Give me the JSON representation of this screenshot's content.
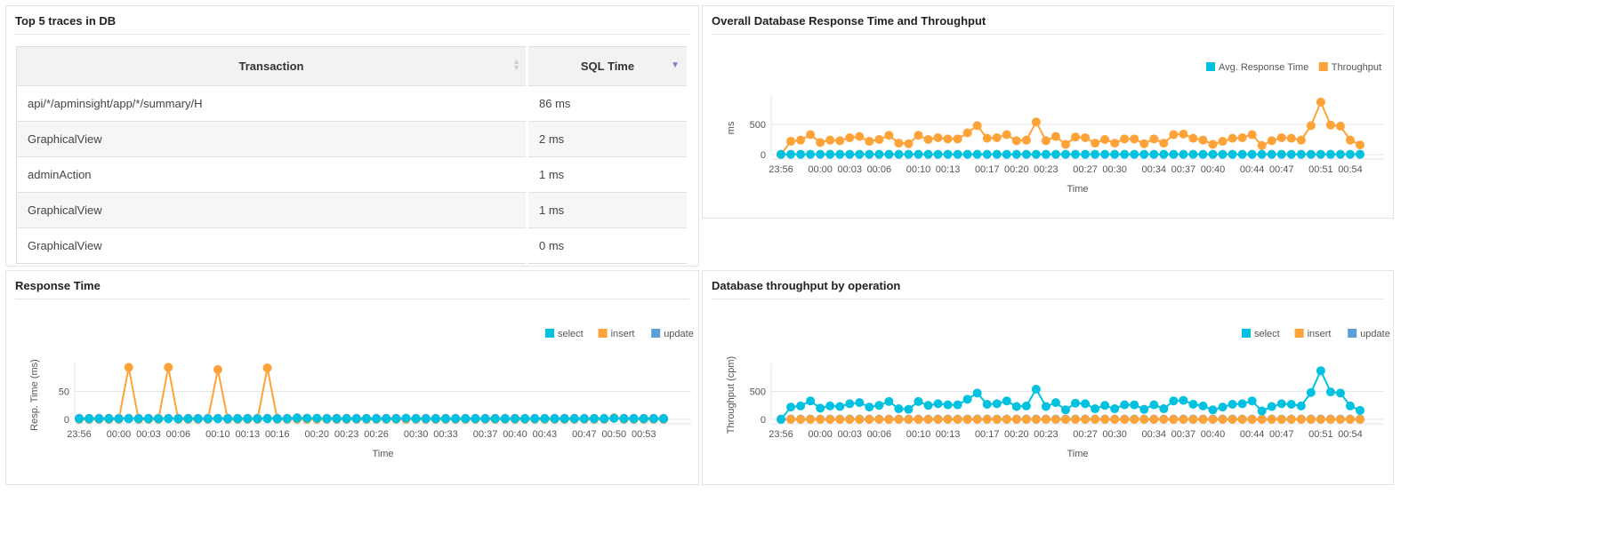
{
  "traces": {
    "title": "Top 5 traces in DB",
    "columns": [
      "Transaction",
      "SQL Time"
    ],
    "rows": [
      [
        "api/*/apminsight/app/*/summary/H",
        "86 ms"
      ],
      [
        "GraphicalView",
        "2 ms"
      ],
      [
        "adminAction",
        "1 ms"
      ],
      [
        "GraphicalView",
        "1 ms"
      ],
      [
        "GraphicalView",
        "0 ms"
      ]
    ]
  },
  "colors": {
    "select": "#00c2e0",
    "insert": "#ffa237",
    "update": "#5b9fd8"
  },
  "chart_data": [
    {
      "id": "overall",
      "title": "Overall Database Response Time and Throughput",
      "type": "line",
      "xlabel": "Time",
      "ylabel": "ms",
      "ylim": [
        0,
        1000
      ],
      "yticks": [
        0,
        500
      ],
      "grid": true,
      "legend": "top-right",
      "xticks": [
        "23:56",
        "00:00",
        "00:03",
        "00:06",
        "00:10",
        "00:13",
        "00:17",
        "00:20",
        "00:23",
        "00:27",
        "00:30",
        "00:34",
        "00:37",
        "00:40",
        "00:44",
        "00:47",
        "00:51",
        "00:54"
      ],
      "series": [
        {
          "name": "Avg. Response Time",
          "color": "#00c2e0",
          "values": [
            5,
            5,
            5,
            5,
            5,
            5,
            5,
            5,
            5,
            5,
            5,
            5,
            5,
            5,
            5,
            5,
            5,
            5,
            5,
            5,
            5,
            5,
            5,
            5,
            5,
            5,
            5,
            5,
            5,
            5,
            5,
            5,
            5,
            5,
            5,
            5,
            5,
            5,
            5,
            5,
            5,
            5,
            5,
            5,
            5,
            5,
            5,
            5,
            5,
            5,
            5,
            5,
            5,
            5,
            5,
            5,
            5,
            5,
            5,
            5
          ]
        },
        {
          "name": "Throughput",
          "color": "#ffa237",
          "values": [
            0,
            220,
            240,
            330,
            200,
            240,
            230,
            280,
            300,
            220,
            250,
            320,
            190,
            180,
            320,
            250,
            280,
            260,
            260,
            360,
            480,
            270,
            280,
            330,
            230,
            240,
            540,
            230,
            300,
            170,
            290,
            280,
            190,
            250,
            190,
            260,
            260,
            180,
            260,
            190,
            330,
            340,
            270,
            240,
            170,
            220,
            270,
            280,
            330,
            150,
            230,
            280,
            270,
            240,
            480,
            870,
            490,
            470,
            240,
            160
          ]
        }
      ]
    },
    {
      "id": "resp",
      "title": "Response Time",
      "type": "line",
      "xlabel": "Time",
      "ylabel": "Resp. Time (ms)",
      "ylim": [
        0,
        100
      ],
      "yticks": [
        0,
        50
      ],
      "grid": true,
      "legend": "top-right",
      "xticks": [
        "23:56",
        "00:00",
        "00:03",
        "00:06",
        "00:10",
        "00:13",
        "00:16",
        "00:20",
        "00:23",
        "00:26",
        "00:30",
        "00:33",
        "00:37",
        "00:40",
        "00:43",
        "00:47",
        "00:50",
        "00:53"
      ],
      "series": [
        {
          "name": "select",
          "color": "#00c2e0",
          "values": [
            1,
            1,
            1,
            1,
            1,
            1,
            1,
            1,
            1,
            1,
            1,
            1,
            1,
            1,
            1,
            1,
            1,
            1,
            1,
            1,
            1,
            1,
            2,
            2,
            2,
            1,
            1,
            1,
            1,
            1,
            1,
            1,
            1,
            2,
            1,
            1,
            1,
            1,
            1,
            1,
            1,
            1,
            1,
            1,
            1,
            1,
            1,
            1,
            1,
            1,
            1,
            1,
            1,
            1,
            2,
            1,
            1,
            1,
            1,
            1
          ]
        },
        {
          "name": "insert",
          "color": "#ffa237",
          "values": [
            0,
            0,
            0,
            0,
            0,
            93,
            0,
            0,
            0,
            93,
            0,
            0,
            0,
            0,
            89,
            0,
            0,
            0,
            0,
            92,
            0,
            0,
            0,
            0,
            0,
            0,
            0,
            0,
            0,
            0,
            0,
            0,
            0,
            0,
            0,
            0,
            0,
            0,
            0,
            0,
            0,
            0,
            0,
            0,
            0,
            0,
            0,
            0,
            0,
            0,
            0,
            0,
            0,
            0,
            3,
            0,
            0,
            0,
            0,
            0
          ]
        },
        {
          "name": "update",
          "color": "#5b9fd8",
          "values": [
            2,
            2,
            2,
            2,
            2,
            2,
            2,
            2,
            2,
            2,
            2,
            2,
            2,
            2,
            2,
            2,
            2,
            2,
            2,
            2,
            2,
            2,
            3,
            2,
            2,
            2,
            2,
            2,
            2,
            2,
            2,
            2,
            2,
            2,
            2,
            2,
            2,
            2,
            2,
            2,
            2,
            2,
            2,
            2,
            2,
            2,
            2,
            2,
            2,
            2,
            2,
            2,
            2,
            2,
            2,
            2,
            2,
            2,
            2,
            2
          ]
        }
      ]
    },
    {
      "id": "ops",
      "title": "Database throughput by operation",
      "type": "line",
      "xlabel": "Time",
      "ylabel": "Throughput (cpm)",
      "ylim": [
        0,
        1000
      ],
      "yticks": [
        0,
        500
      ],
      "grid": true,
      "legend": "top-right",
      "xticks": [
        "23:56",
        "00:00",
        "00:03",
        "00:06",
        "00:10",
        "00:13",
        "00:17",
        "00:20",
        "00:23",
        "00:27",
        "00:30",
        "00:34",
        "00:37",
        "00:40",
        "00:44",
        "00:47",
        "00:51",
        "00:54"
      ],
      "series": [
        {
          "name": "select",
          "color": "#00c2e0",
          "values": [
            0,
            220,
            240,
            330,
            200,
            240,
            230,
            280,
            300,
            220,
            250,
            320,
            190,
            180,
            320,
            250,
            280,
            260,
            260,
            360,
            470,
            270,
            280,
            330,
            230,
            240,
            540,
            230,
            300,
            170,
            290,
            280,
            190,
            250,
            190,
            260,
            260,
            180,
            260,
            190,
            330,
            340,
            270,
            240,
            170,
            220,
            270,
            280,
            330,
            150,
            230,
            280,
            270,
            240,
            480,
            870,
            490,
            470,
            240,
            160
          ]
        },
        {
          "name": "insert",
          "color": "#ffa237",
          "values": [
            0,
            0,
            0,
            0,
            0,
            0,
            0,
            0,
            0,
            0,
            0,
            0,
            0,
            0,
            0,
            0,
            0,
            0,
            0,
            0,
            0,
            0,
            0,
            0,
            0,
            0,
            0,
            0,
            0,
            0,
            0,
            0,
            0,
            0,
            0,
            0,
            0,
            0,
            0,
            0,
            0,
            0,
            0,
            0,
            0,
            0,
            0,
            0,
            0,
            0,
            0,
            0,
            0,
            0,
            0,
            0,
            0,
            0,
            0,
            0
          ]
        },
        {
          "name": "update",
          "color": "#5b9fd8",
          "values": [
            5,
            5,
            5,
            5,
            5,
            5,
            5,
            5,
            5,
            5,
            5,
            5,
            5,
            5,
            5,
            5,
            5,
            5,
            5,
            5,
            5,
            5,
            5,
            5,
            5,
            5,
            5,
            5,
            5,
            5,
            5,
            5,
            5,
            5,
            5,
            5,
            5,
            5,
            5,
            5,
            5,
            5,
            5,
            5,
            5,
            5,
            5,
            5,
            5,
            5,
            5,
            5,
            5,
            5,
            5,
            5,
            5,
            5,
            5,
            5
          ]
        }
      ]
    }
  ]
}
